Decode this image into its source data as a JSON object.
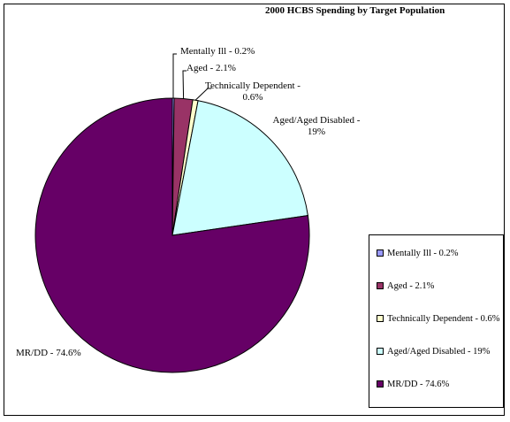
{
  "chart_data": {
    "type": "pie",
    "title": "2000 HCBS Spending by Target Population",
    "start_angle_deg": 0,
    "direction": "clockwise",
    "slices": [
      {
        "label": "Mentally Ill - 0.2%",
        "label_lines": [
          "Mentally Ill - 0.2%"
        ],
        "value": 0.2,
        "color": "#9999ff"
      },
      {
        "label": "Aged - 2.1%",
        "label_lines": [
          "Aged - 2.1%"
        ],
        "value": 2.1,
        "color": "#993366"
      },
      {
        "label": "Technically Dependent - 0.6%",
        "label_lines": [
          "Technically Dependent -",
          "0.6%"
        ],
        "value": 0.6,
        "color": "#ffffcc"
      },
      {
        "label": "Aged/Aged Disabled - 19%",
        "label_lines": [
          "Aged/Aged Disabled -",
          "19%"
        ],
        "value": 19,
        "color": "#ccffff"
      },
      {
        "label": "MR/DD - 74.6%",
        "label_lines": [
          "MR/DD - 74.6%"
        ],
        "value": 74.6,
        "color": "#660066"
      }
    ],
    "legend": {
      "position": "right",
      "entries": [
        "Mentally Ill - 0.2%",
        "Aged - 2.1%",
        "Technically Dependent - 0.6%",
        "Aged/Aged Disabled - 19%",
        "MR/DD - 74.6%"
      ]
    }
  }
}
